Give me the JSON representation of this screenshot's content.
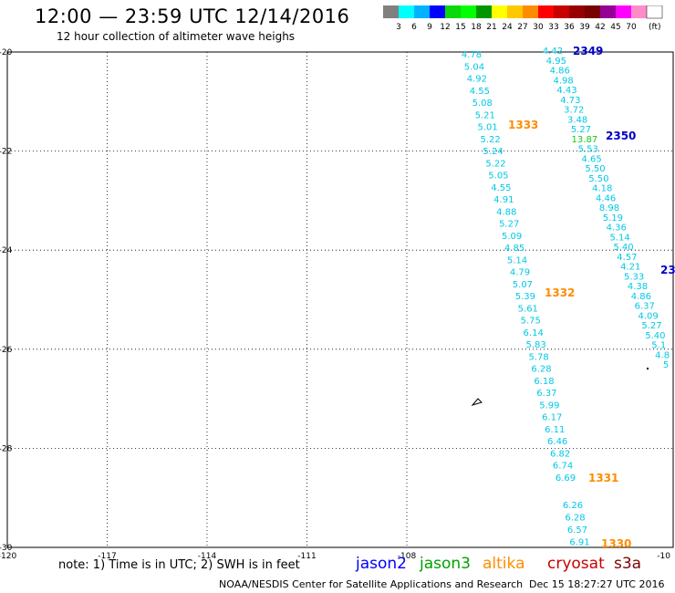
{
  "header": {
    "title": "12:00 — 23:59 UTC 12/14/2016",
    "subtitle": "12 hour collection of altimeter wave heighs"
  },
  "legend": {
    "colors": [
      "#808080",
      "#00ffff",
      "#00b2ff",
      "#0000ff",
      "#0ad80a",
      "#00ff00",
      "#009600",
      "#ffff00",
      "#ffc800",
      "#ff8c00",
      "#ff0000",
      "#c80000",
      "#960000",
      "#780000",
      "#960096",
      "#ff00ff",
      "#ff8cc8",
      "#ffffff"
    ],
    "labels": [
      "3",
      "6",
      "9",
      "12",
      "15",
      "18",
      "21",
      "24",
      "27",
      "30",
      "33",
      "36",
      "39",
      "42",
      "45",
      "70",
      "(ft)"
    ]
  },
  "axes": {
    "lat_labels": [
      "-20",
      "-22",
      "-24",
      "-26",
      "-28",
      "-30"
    ],
    "lon_labels": [
      "-120",
      "-117",
      "-114",
      "-111",
      "-108",
      "-10"
    ]
  },
  "chart_data": {
    "type": "scatter",
    "track_colors": {
      "altika": "#ff8c00",
      "jason2": "#0000c8",
      "swh_cyan": "#00c8e6",
      "swh_green": "#14c814"
    },
    "tracks": [
      {
        "label": "1333",
        "label_lat": -21.6,
        "label_lon": -108.3,
        "values": [
          "4.78",
          "5.04",
          "4.92",
          "4.55",
          "5.08",
          "5.21",
          "5.01",
          "5.22",
          "5.24",
          "5.22",
          "5.05",
          "4.55",
          "4.91",
          "4.88",
          "5.27",
          "5.09",
          "4.85",
          "5.14",
          "4.79",
          "5.07",
          "5.39",
          "5.61",
          "5.75",
          "6.14",
          "5.83",
          "5.78",
          "6.28",
          "6.18",
          "6.37",
          "5.99",
          "6.17",
          "6.11",
          "6.46",
          "6.82",
          "6.74",
          "6.69"
        ]
      },
      {
        "label": "2349",
        "values": [
          "4.42",
          "4.95",
          "4.86",
          "4.98",
          "4.43",
          "4.73",
          "3.72",
          "3.48",
          "5.27",
          "13.87",
          "5.53",
          "4.65",
          "5.50",
          "5.50",
          "4.18",
          "4.46",
          "8.98",
          "5.19",
          "4.36",
          "5.14",
          "5.40",
          "4.57",
          "4.21",
          "5.33",
          "4.38",
          "4.86",
          "6.37",
          "4.09",
          "5.27",
          "5.40",
          "5.1",
          "4.8",
          "5"
        ]
      },
      {
        "label": "2350"
      },
      {
        "label": "23"
      },
      {
        "label": "1332"
      },
      {
        "label": "1331"
      },
      {
        "label": "1330",
        "values": [
          "6.26",
          "6.28",
          "6.57",
          "6.91"
        ]
      }
    ]
  },
  "note": "note: 1) Time is in UTC; 2) SWH is in feet",
  "satellites": [
    {
      "name": "jason2",
      "color": "#0000ff"
    },
    {
      "name": "jason3",
      "color": "#00a000"
    },
    {
      "name": "altika",
      "color": "#ff8c00"
    },
    {
      "name": "cryosat",
      "color": "#c80000"
    },
    {
      "name": "s3a",
      "color": "#800000"
    }
  ],
  "footer": {
    "credit": "NOAA/NESDIS Center for Satellite Applications and Research",
    "timestamp": "Dec 15 18:27:27 UTC 2016"
  }
}
